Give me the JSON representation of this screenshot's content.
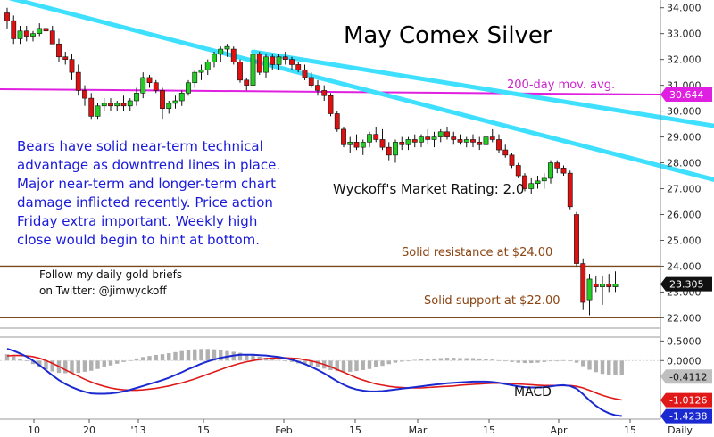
{
  "chart_data": [
    {
      "type": "candlestick",
      "title": "May Comex Silver",
      "ylim": [
        21.6,
        34.3
      ],
      "y_ticks": [
        "34.000",
        "33.000",
        "32.000",
        "31.000",
        "30.000",
        "29.000",
        "28.000",
        "27.000",
        "26.000",
        "25.000",
        "24.000",
        "23.000",
        "22.000"
      ],
      "y_tick_values": [
        34,
        33,
        32,
        31,
        30,
        29,
        28,
        27,
        26,
        25,
        24,
        23,
        22
      ],
      "x_ticks": [
        "10",
        "20",
        "'13",
        "15",
        "Feb",
        "15",
        "Mar",
        "15",
        "Apr",
        "15",
        "Daily"
      ],
      "candles": [
        [
          33.8,
          34.0,
          33.2,
          33.5
        ],
        [
          33.5,
          33.7,
          32.6,
          32.8
        ],
        [
          32.8,
          33.3,
          32.6,
          33.1
        ],
        [
          33.1,
          33.3,
          32.7,
          32.9
        ],
        [
          32.9,
          33.1,
          32.7,
          33.0
        ],
        [
          33.0,
          33.4,
          32.9,
          33.2
        ],
        [
          33.2,
          33.5,
          32.9,
          33.1
        ],
        [
          33.1,
          33.3,
          32.6,
          32.6
        ],
        [
          32.6,
          32.8,
          31.9,
          32.1
        ],
        [
          32.1,
          32.3,
          31.8,
          32.0
        ],
        [
          32.0,
          32.2,
          31.2,
          31.5
        ],
        [
          31.5,
          31.8,
          30.6,
          30.8
        ],
        [
          30.8,
          31.0,
          30.2,
          30.5
        ],
        [
          30.5,
          30.7,
          29.7,
          29.8
        ],
        [
          29.8,
          30.3,
          29.7,
          30.2
        ],
        [
          30.2,
          30.5,
          30.0,
          30.3
        ],
        [
          30.3,
          30.5,
          30.0,
          30.2
        ],
        [
          30.2,
          30.4,
          30.0,
          30.3
        ],
        [
          30.3,
          30.6,
          30.0,
          30.2
        ],
        [
          30.2,
          30.5,
          30.0,
          30.4
        ],
        [
          30.4,
          30.9,
          30.2,
          30.7
        ],
        [
          30.7,
          31.5,
          30.5,
          31.3
        ],
        [
          31.3,
          31.4,
          30.9,
          31.1
        ],
        [
          31.1,
          31.2,
          30.7,
          30.8
        ],
        [
          30.8,
          30.9,
          29.7,
          30.1
        ],
        [
          30.1,
          30.4,
          29.9,
          30.3
        ],
        [
          30.3,
          30.6,
          30.1,
          30.4
        ],
        [
          30.4,
          30.8,
          30.2,
          30.7
        ],
        [
          30.7,
          31.2,
          30.6,
          31.1
        ],
        [
          31.1,
          31.6,
          30.9,
          31.5
        ],
        [
          31.5,
          31.8,
          31.2,
          31.6
        ],
        [
          31.6,
          32.0,
          31.4,
          31.9
        ],
        [
          31.9,
          32.3,
          31.7,
          32.2
        ],
        [
          32.2,
          32.5,
          31.9,
          32.4
        ],
        [
          32.4,
          32.6,
          32.1,
          32.5
        ],
        [
          32.4,
          32.5,
          31.8,
          31.9
        ],
        [
          31.9,
          32.0,
          31.1,
          31.2
        ],
        [
          31.2,
          31.3,
          30.8,
          31.0
        ],
        [
          31.0,
          32.3,
          30.9,
          32.2
        ],
        [
          32.2,
          32.3,
          31.4,
          31.5
        ],
        [
          31.5,
          32.2,
          31.3,
          32.1
        ],
        [
          32.1,
          32.2,
          31.6,
          31.8
        ],
        [
          31.8,
          32.2,
          31.6,
          32.1
        ],
        [
          32.1,
          32.3,
          31.8,
          32.0
        ],
        [
          32.0,
          32.1,
          31.6,
          31.8
        ],
        [
          31.8,
          31.9,
          31.5,
          31.6
        ],
        [
          31.6,
          31.8,
          31.2,
          31.3
        ],
        [
          31.3,
          31.5,
          30.9,
          31.0
        ],
        [
          31.0,
          31.2,
          30.6,
          30.8
        ],
        [
          30.8,
          31.0,
          30.4,
          30.6
        ],
        [
          30.6,
          30.7,
          29.8,
          29.9
        ],
        [
          29.9,
          30.0,
          29.2,
          29.3
        ],
        [
          29.3,
          29.4,
          28.6,
          28.7
        ],
        [
          28.7,
          29.0,
          28.4,
          28.8
        ],
        [
          28.8,
          29.1,
          28.5,
          28.6
        ],
        [
          28.6,
          28.9,
          28.3,
          28.8
        ],
        [
          28.8,
          29.2,
          28.6,
          29.1
        ],
        [
          29.1,
          29.4,
          28.8,
          28.9
        ],
        [
          28.9,
          29.3,
          28.5,
          28.6
        ],
        [
          28.6,
          28.8,
          28.1,
          28.3
        ],
        [
          28.3,
          28.9,
          28.0,
          28.8
        ],
        [
          28.8,
          29.0,
          28.5,
          28.7
        ],
        [
          28.7,
          29.0,
          28.5,
          28.9
        ],
        [
          28.9,
          29.1,
          28.6,
          28.8
        ],
        [
          28.8,
          29.1,
          28.6,
          29.0
        ],
        [
          29.0,
          29.3,
          28.7,
          28.9
        ],
        [
          28.9,
          29.2,
          28.6,
          29.0
        ],
        [
          29.0,
          29.3,
          28.8,
          29.2
        ],
        [
          29.2,
          29.4,
          28.9,
          29.0
        ],
        [
          29.0,
          29.2,
          28.7,
          28.9
        ],
        [
          28.9,
          29.1,
          28.7,
          28.8
        ],
        [
          28.8,
          29.0,
          28.6,
          28.9
        ],
        [
          28.9,
          29.1,
          28.6,
          28.8
        ],
        [
          28.8,
          29.0,
          28.5,
          28.7
        ],
        [
          28.7,
          29.1,
          28.6,
          29.0
        ],
        [
          29.0,
          29.3,
          28.8,
          28.9
        ],
        [
          28.9,
          29.1,
          28.4,
          28.5
        ],
        [
          28.5,
          28.7,
          28.2,
          28.3
        ],
        [
          28.3,
          28.4,
          27.8,
          27.9
        ],
        [
          27.9,
          28.0,
          27.4,
          27.5
        ],
        [
          27.5,
          27.6,
          26.9,
          27.0
        ],
        [
          27.0,
          27.4,
          26.8,
          27.2
        ],
        [
          27.2,
          27.5,
          27.0,
          27.3
        ],
        [
          27.3,
          27.6,
          27.0,
          27.4
        ],
        [
          27.4,
          28.1,
          27.2,
          28.0
        ],
        [
          28.0,
          28.1,
          27.6,
          27.8
        ],
        [
          27.8,
          27.9,
          27.5,
          27.6
        ],
        [
          27.6,
          27.7,
          26.2,
          26.3
        ],
        [
          26.0,
          26.1,
          24.0,
          24.1
        ],
        [
          24.1,
          24.3,
          22.3,
          22.6
        ],
        [
          22.7,
          23.7,
          22.1,
          23.5
        ],
        [
          23.3,
          23.6,
          23.0,
          23.2
        ],
        [
          23.2,
          23.6,
          22.5,
          23.3
        ],
        [
          23.3,
          23.7,
          23.0,
          23.2
        ],
        [
          23.2,
          23.8,
          23.0,
          23.3
        ]
      ],
      "last_price": "23.305",
      "ma_200": {
        "label": "200-day mov. avg.",
        "value": "30.644",
        "start": 30.85,
        "end": 30.64
      },
      "trendlines": [
        {
          "from": [
            0,
            34.4
          ],
          "to": [
            110,
            27.3
          ]
        },
        {
          "from": [
            38,
            32.3
          ],
          "to": [
            110,
            29.4
          ]
        }
      ],
      "levels": [
        {
          "value": 24.0,
          "label": "Solid resistance at $24.00"
        },
        {
          "value": 22.0,
          "label": "Solid support at $22.00"
        }
      ],
      "rating": "Wyckoff's Market Rating: 2.0",
      "commentary": [
        "Bears have solid near-term technical",
        "advantage as downtrend lines in place.",
        "Major near-term and longer-term chart",
        "damage inflicted recently. Price action",
        "Friday extra important. Weekly high",
        "close would begin to hint at bottom."
      ],
      "follow_note": [
        "Follow my daily gold briefs",
        "on Twitter:   @jimwyckoff"
      ]
    },
    {
      "type": "macd",
      "title": "MACD",
      "ylim": [
        -1.5,
        0.6
      ],
      "y_ticks": [
        "0.5000",
        "0.0000"
      ],
      "y_tick_values": [
        0.5,
        0.0
      ],
      "macd_line_value": "-1.4238",
      "signal_line_value": "-1.0126",
      "histogram_value": "-0.4112",
      "macd": [
        0.3,
        0.25,
        0.18,
        0.1,
        0.0,
        -0.12,
        -0.25,
        -0.38,
        -0.5,
        -0.6,
        -0.68,
        -0.75,
        -0.8,
        -0.84,
        -0.85,
        -0.85,
        -0.84,
        -0.82,
        -0.79,
        -0.75,
        -0.7,
        -0.65,
        -0.6,
        -0.55,
        -0.5,
        -0.44,
        -0.37,
        -0.3,
        -0.22,
        -0.15,
        -0.08,
        -0.02,
        0.03,
        0.07,
        0.1,
        0.13,
        0.15,
        0.15,
        0.15,
        0.14,
        0.13,
        0.11,
        0.09,
        0.06,
        0.02,
        -0.03,
        -0.09,
        -0.16,
        -0.24,
        -0.33,
        -0.43,
        -0.53,
        -0.62,
        -0.69,
        -0.74,
        -0.77,
        -0.79,
        -0.79,
        -0.78,
        -0.76,
        -0.74,
        -0.72,
        -0.7,
        -0.68,
        -0.66,
        -0.64,
        -0.62,
        -0.6,
        -0.58,
        -0.57,
        -0.56,
        -0.55,
        -0.54,
        -0.54,
        -0.54,
        -0.55,
        -0.57,
        -0.6,
        -0.63,
        -0.66,
        -0.68,
        -0.69,
        -0.69,
        -0.68,
        -0.66,
        -0.64,
        -0.63,
        -0.65,
        -0.72,
        -0.86,
        -1.02,
        -1.16,
        -1.27,
        -1.35,
        -1.4,
        -1.42
      ],
      "signal": [
        0.12,
        0.13,
        0.13,
        0.12,
        0.1,
        0.06,
        0.0,
        -0.07,
        -0.15,
        -0.24,
        -0.32,
        -0.4,
        -0.48,
        -0.55,
        -0.61,
        -0.66,
        -0.7,
        -0.73,
        -0.75,
        -0.76,
        -0.76,
        -0.75,
        -0.73,
        -0.71,
        -0.68,
        -0.65,
        -0.61,
        -0.57,
        -0.52,
        -0.47,
        -0.41,
        -0.35,
        -0.29,
        -0.23,
        -0.17,
        -0.12,
        -0.07,
        -0.03,
        0.0,
        0.03,
        0.05,
        0.06,
        0.07,
        0.07,
        0.06,
        0.05,
        0.02,
        -0.01,
        -0.05,
        -0.1,
        -0.16,
        -0.23,
        -0.3,
        -0.37,
        -0.44,
        -0.5,
        -0.55,
        -0.6,
        -0.63,
        -0.66,
        -0.68,
        -0.69,
        -0.7,
        -0.7,
        -0.7,
        -0.69,
        -0.68,
        -0.67,
        -0.66,
        -0.65,
        -0.63,
        -0.62,
        -0.61,
        -0.6,
        -0.59,
        -0.58,
        -0.58,
        -0.58,
        -0.59,
        -0.6,
        -0.61,
        -0.62,
        -0.63,
        -0.64,
        -0.64,
        -0.64,
        -0.64,
        -0.64,
        -0.66,
        -0.7,
        -0.76,
        -0.83,
        -0.89,
        -0.94,
        -0.98,
        -1.01
      ]
    }
  ]
}
